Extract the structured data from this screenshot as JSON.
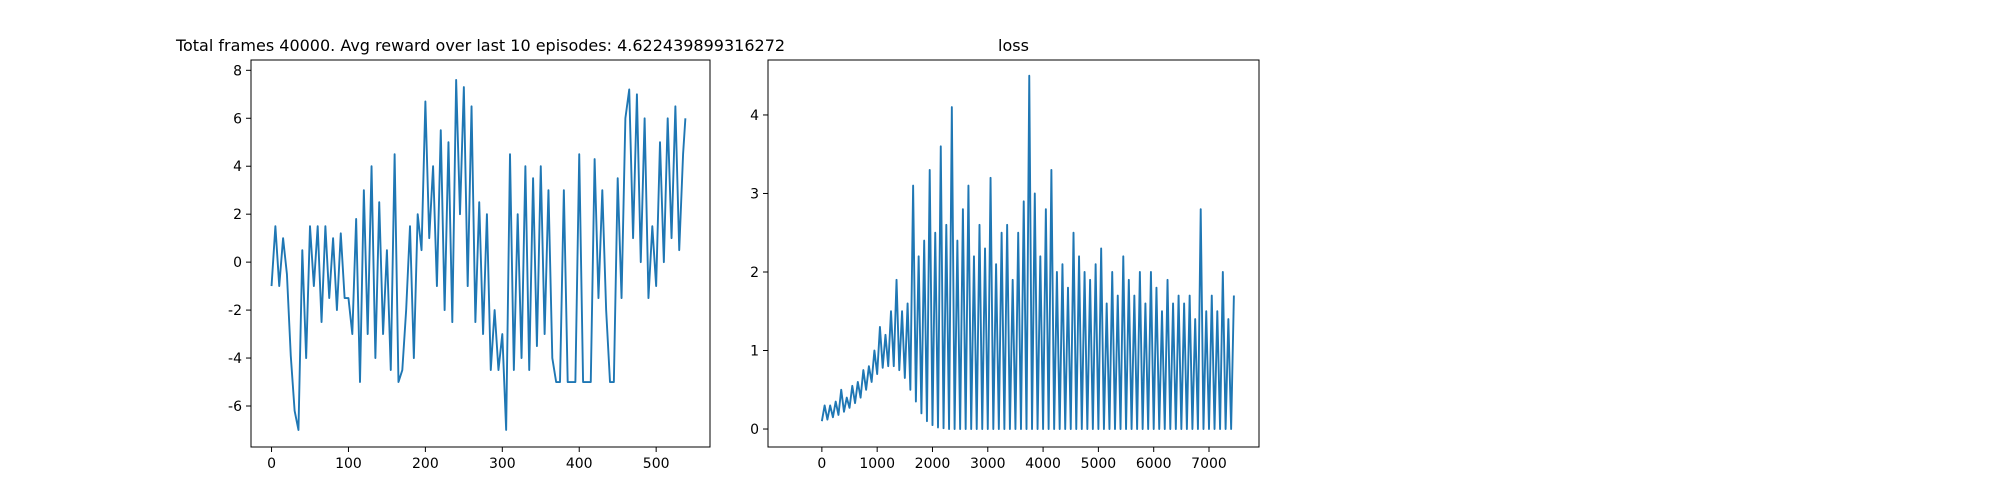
{
  "chart_data": [
    {
      "type": "line",
      "title": "Total frames 40000. Avg reward over last 10 episodes: 4.622439899316272",
      "color": "#1f77b4",
      "x": [
        0,
        5,
        10,
        15,
        20,
        25,
        30,
        35,
        40,
        45,
        50,
        55,
        60,
        65,
        70,
        75,
        80,
        85,
        90,
        95,
        100,
        105,
        110,
        115,
        120,
        125,
        130,
        135,
        140,
        145,
        150,
        155,
        160,
        165,
        170,
        175,
        180,
        185,
        190,
        195,
        200,
        205,
        210,
        215,
        220,
        225,
        230,
        235,
        240,
        245,
        250,
        255,
        260,
        265,
        270,
        275,
        280,
        285,
        290,
        295,
        300,
        305,
        310,
        315,
        320,
        325,
        330,
        335,
        340,
        345,
        350,
        355,
        360,
        365,
        370,
        375,
        380,
        385,
        390,
        395,
        400,
        405,
        410,
        415,
        420,
        425,
        430,
        435,
        440,
        445,
        450,
        455,
        460,
        465,
        470,
        475,
        480,
        485,
        490,
        495,
        500,
        505,
        510,
        515,
        520,
        525,
        530,
        535,
        538
      ],
      "values": [
        -1,
        1.5,
        -1,
        1,
        -0.5,
        -3.9,
        -6.2,
        -7,
        0.5,
        -4,
        1.5,
        -1,
        1.5,
        -2.5,
        1.5,
        -1.5,
        1,
        -2,
        1.2,
        -1.5,
        -1.5,
        -3,
        1.8,
        -5,
        3,
        -3,
        4,
        -4,
        2.5,
        -3,
        0.5,
        -4.5,
        4.5,
        -5,
        -4.5,
        -2,
        1.5,
        -4,
        2,
        0.5,
        6.7,
        1,
        4,
        -1,
        5.5,
        -2,
        5,
        -2.5,
        7.6,
        2,
        7.3,
        -1,
        6.5,
        -2.5,
        2.5,
        -3,
        2,
        -4.5,
        -2,
        -4.5,
        -3,
        -7,
        4.5,
        -4.5,
        2,
        -4,
        4,
        -4.5,
        3.5,
        -3.5,
        4,
        -3,
        3,
        -4,
        -5,
        -5,
        3,
        -5,
        -5,
        -5,
        4.5,
        -5,
        -5,
        -5,
        4.3,
        -1.5,
        3,
        -2,
        -5,
        -5,
        3.5,
        -1.5,
        6,
        7.2,
        1,
        7,
        0,
        6,
        -1.5,
        1.5,
        -1,
        5,
        0,
        6,
        1,
        6.5,
        0.5,
        4.5,
        6
      ],
      "xlim": [
        -26.7,
        570
      ],
      "ylim": [
        -7.71,
        8.43
      ],
      "xticks": [
        0,
        100,
        200,
        300,
        400,
        500
      ],
      "yticks": [
        -6,
        -4,
        -2,
        0,
        2,
        4,
        6,
        8
      ]
    },
    {
      "type": "line",
      "title": "loss",
      "color": "#1f77b4",
      "x": [
        0,
        50,
        100,
        150,
        200,
        250,
        300,
        350,
        400,
        450,
        500,
        550,
        600,
        650,
        700,
        750,
        800,
        850,
        900,
        950,
        1000,
        1050,
        1100,
        1150,
        1200,
        1250,
        1300,
        1350,
        1400,
        1450,
        1500,
        1550,
        1600,
        1650,
        1700,
        1750,
        1800,
        1850,
        1900,
        1950,
        2000,
        2050,
        2100,
        2150,
        2200,
        2250,
        2300,
        2350,
        2400,
        2450,
        2500,
        2550,
        2600,
        2650,
        2700,
        2750,
        2800,
        2850,
        2900,
        2950,
        3000,
        3050,
        3100,
        3150,
        3200,
        3250,
        3300,
        3350,
        3400,
        3450,
        3500,
        3550,
        3600,
        3650,
        3700,
        3750,
        3800,
        3850,
        3900,
        3950,
        4000,
        4050,
        4100,
        4150,
        4200,
        4250,
        4300,
        4350,
        4400,
        4450,
        4500,
        4550,
        4600,
        4650,
        4700,
        4750,
        4800,
        4850,
        4900,
        4950,
        5000,
        5050,
        5100,
        5150,
        5200,
        5250,
        5300,
        5350,
        5400,
        5450,
        5500,
        5550,
        5600,
        5650,
        5700,
        5750,
        5800,
        5850,
        5900,
        5950,
        6000,
        6050,
        6100,
        6150,
        6200,
        6250,
        6300,
        6350,
        6400,
        6450,
        6500,
        6550,
        6600,
        6650,
        6700,
        6750,
        6800,
        6850,
        6900,
        6950,
        7000,
        7050,
        7100,
        7150,
        7200,
        7250,
        7300,
        7350,
        7400,
        7450
      ],
      "values": [
        0.1,
        0.3,
        0.12,
        0.3,
        0.15,
        0.35,
        0.18,
        0.5,
        0.22,
        0.4,
        0.27,
        0.55,
        0.33,
        0.6,
        0.4,
        0.75,
        0.5,
        0.8,
        0.6,
        1.0,
        0.7,
        1.3,
        0.78,
        1.2,
        0.8,
        1.5,
        0.8,
        1.9,
        0.75,
        1.5,
        0.65,
        1.6,
        0.5,
        3.1,
        0.35,
        2.2,
        0.2,
        2.4,
        0.1,
        3.3,
        0.05,
        2.5,
        0.02,
        3.6,
        0.01,
        2.6,
        0,
        4.1,
        0,
        2.4,
        0,
        2.8,
        0,
        3.1,
        0,
        2.2,
        0,
        2.6,
        0,
        2.3,
        0,
        3.2,
        0,
        2.1,
        0,
        2.5,
        0,
        2.6,
        0,
        1.9,
        0,
        2.5,
        0,
        2.9,
        0,
        4.5,
        0,
        3.0,
        0,
        2.2,
        0,
        2.8,
        0,
        3.3,
        0,
        2.0,
        0,
        2.1,
        0,
        1.8,
        0,
        2.5,
        0,
        2.2,
        0,
        2.0,
        0,
        1.9,
        0,
        2.1,
        0,
        2.3,
        0,
        1.6,
        0,
        2.0,
        0,
        1.7,
        0,
        2.2,
        0,
        1.9,
        0,
        1.7,
        0,
        2.0,
        0,
        1.6,
        0,
        2.0,
        0,
        1.8,
        0,
        1.5,
        0,
        1.9,
        0,
        1.6,
        0,
        1.7,
        0,
        1.6,
        0,
        1.7,
        0,
        1.4,
        0,
        2.8,
        0,
        1.5,
        0,
        1.7,
        0,
        1.5,
        0,
        2.0,
        0,
        1.4,
        0,
        1.7
      ],
      "xlim": [
        -974,
        7904
      ],
      "ylim": [
        -0.229,
        4.7
      ],
      "xticks": [
        0,
        1000,
        2000,
        3000,
        4000,
        5000,
        6000,
        7000
      ],
      "yticks": [
        0,
        1,
        2,
        3,
        4
      ]
    }
  ]
}
